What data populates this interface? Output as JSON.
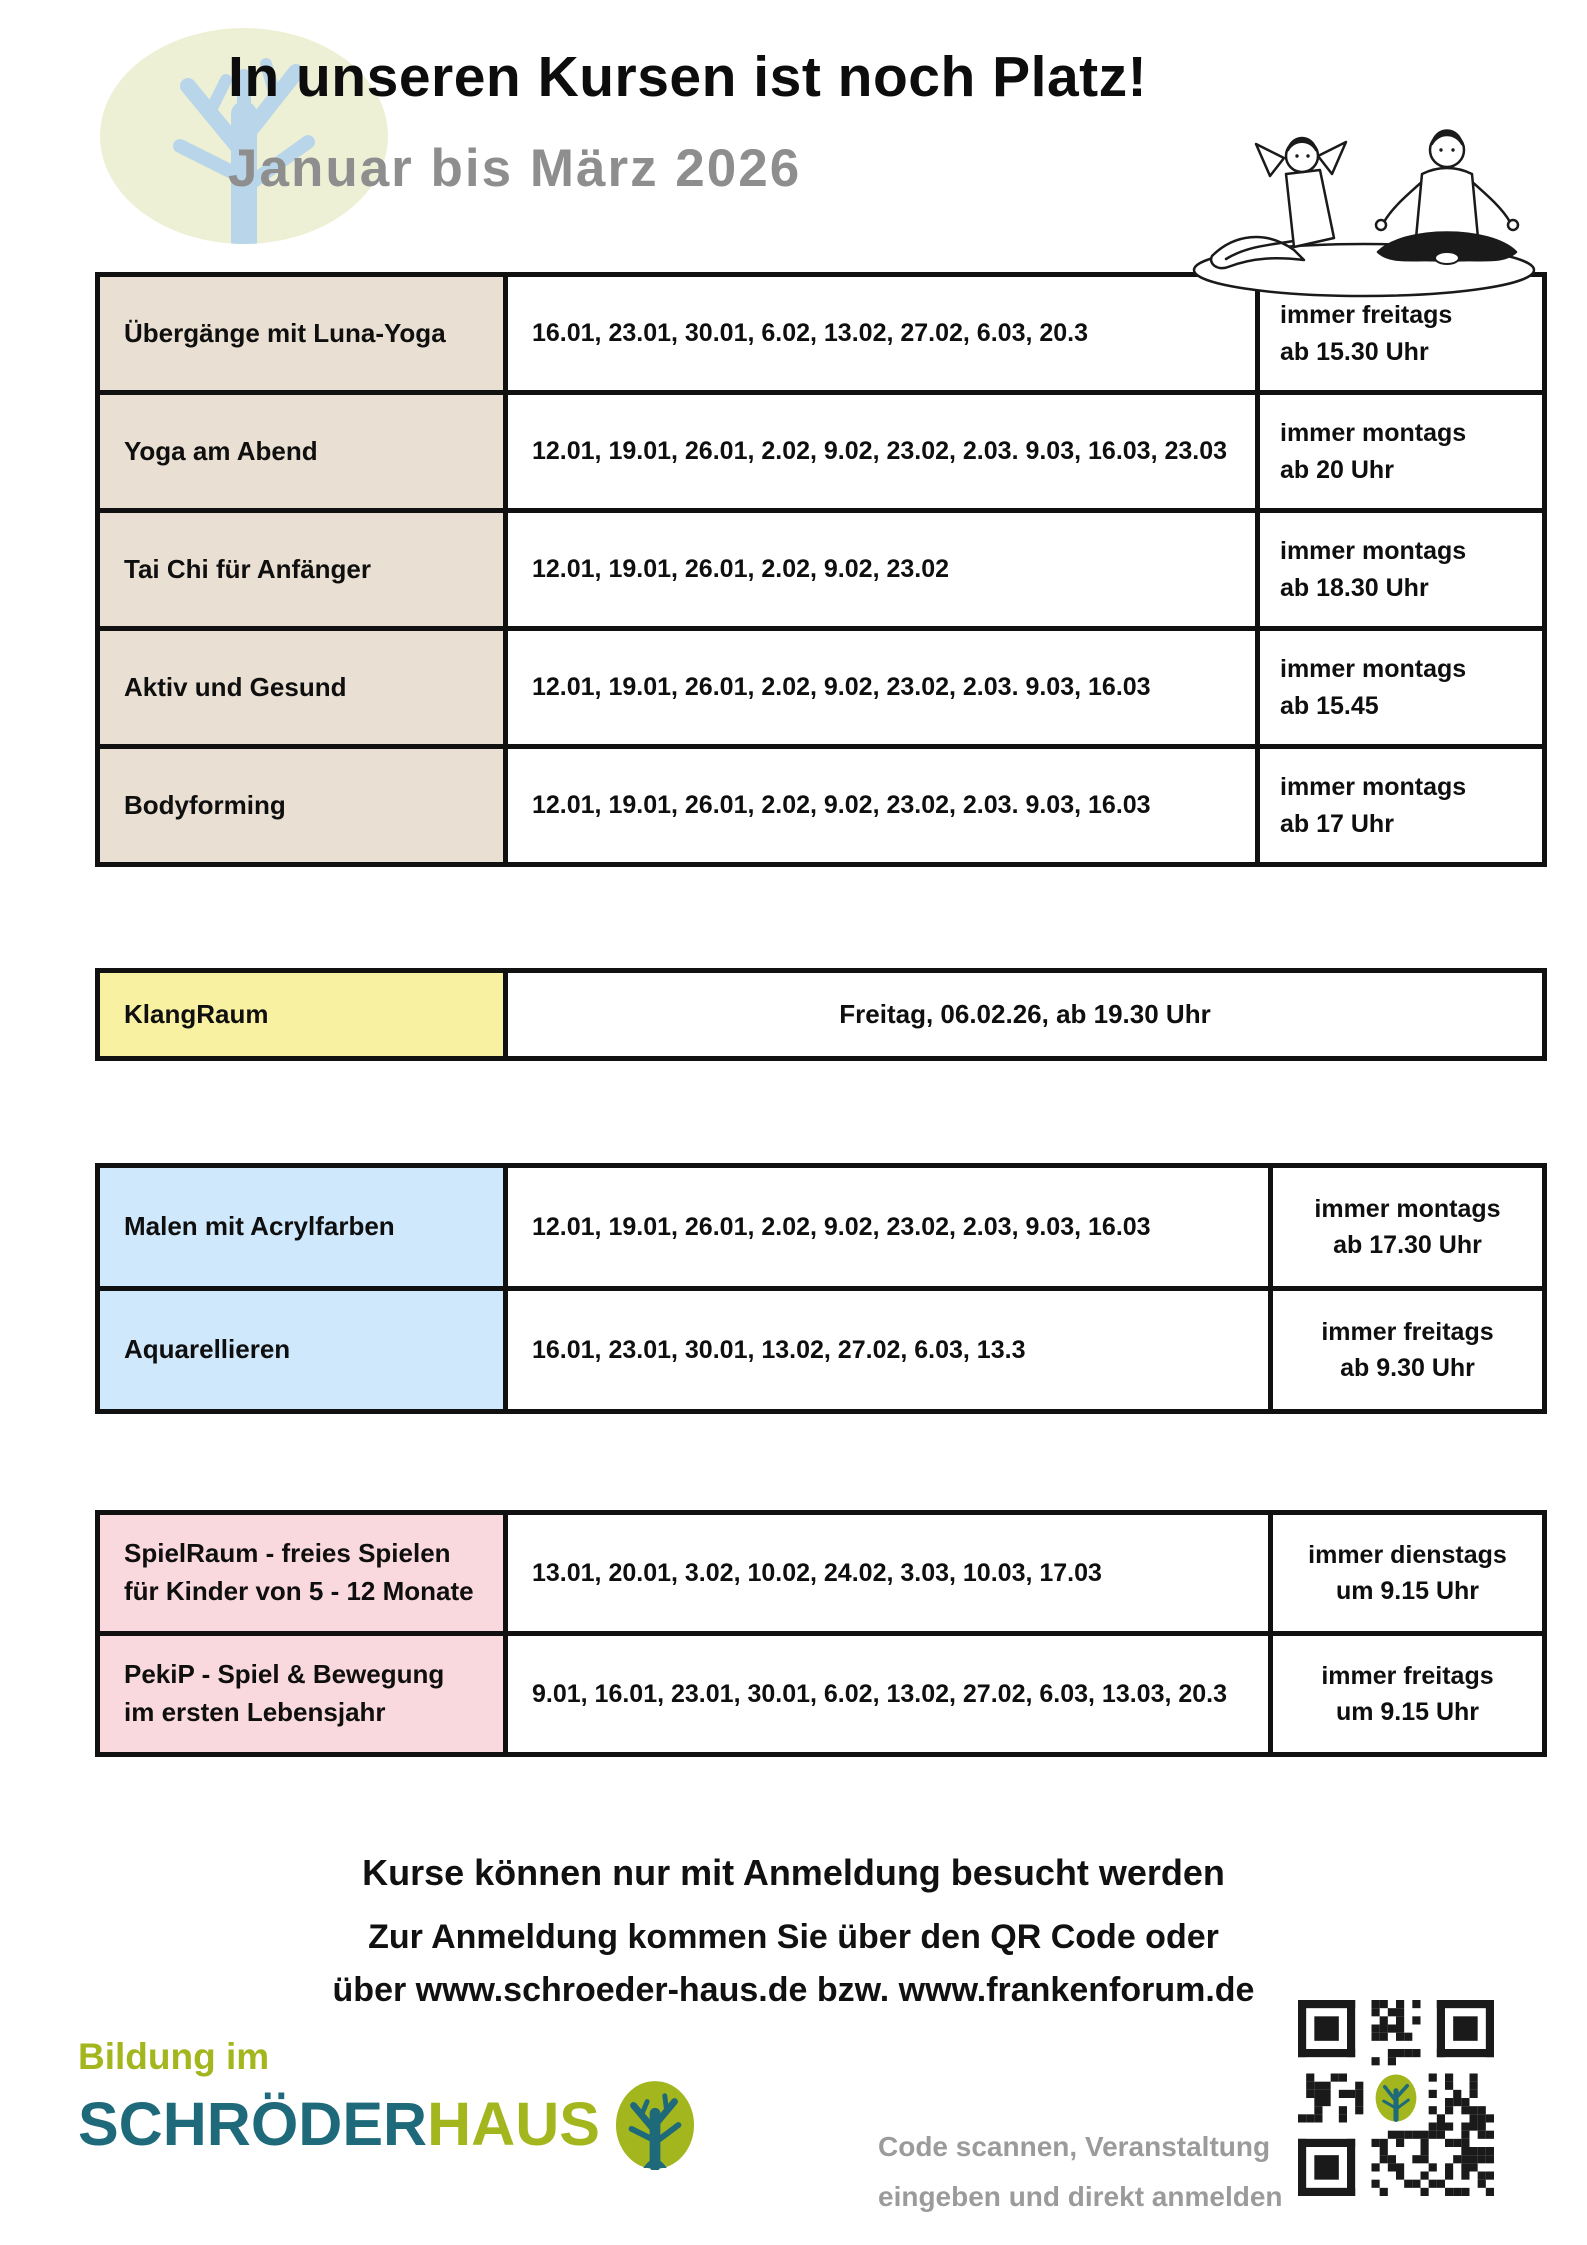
{
  "header": {
    "title": "In unseren Kursen ist noch Platz!",
    "subtitle": "Januar bis März 2026"
  },
  "tables": {
    "wellness": {
      "rows": [
        {
          "label": "Übergänge mit Luna-Yoga",
          "dates": "16.01, 23.01, 30.01, 6.02, 13.02, 27.02, 6.03, 20.3",
          "sched1": "immer freitags",
          "sched2": "ab 15.30 Uhr"
        },
        {
          "label": "Yoga am Abend",
          "dates": "12.01, 19.01, 26.01, 2.02, 9.02, 23.02, 2.03. 9.03, 16.03, 23.03",
          "sched1": "immer montags",
          "sched2": "ab 20 Uhr"
        },
        {
          "label": "Tai Chi für Anfänger",
          "dates": "12.01, 19.01, 26.01, 2.02, 9.02, 23.02",
          "sched1": "immer montags",
          "sched2": "ab 18.30 Uhr"
        },
        {
          "label": "Aktiv und Gesund",
          "dates": "12.01, 19.01, 26.01, 2.02, 9.02, 23.02, 2.03. 9.03, 16.03",
          "sched1": "immer montags",
          "sched2": "ab 15.45"
        },
        {
          "label": "Bodyforming",
          "dates": "12.01, 19.01, 26.01, 2.02, 9.02, 23.02, 2.03. 9.03, 16.03",
          "sched1": "immer montags",
          "sched2": "ab 17 Uhr"
        }
      ]
    },
    "klangraum": {
      "label": "KlangRaum",
      "info": "Freitag, 06.02.26, ab 19.30 Uhr"
    },
    "art": {
      "rows": [
        {
          "label": "Malen mit Acrylfarben",
          "dates": "12.01, 19.01, 26.01, 2.02, 9.02, 23.02, 2.03, 9.03, 16.03",
          "sched1": "immer montags",
          "sched2": "ab 17.30 Uhr"
        },
        {
          "label": "Aquarellieren",
          "dates": "16.01, 23.01, 30.01, 13.02, 27.02, 6.03, 13.3",
          "sched1": "immer freitags",
          "sched2": "ab 9.30 Uhr"
        }
      ]
    },
    "kids": {
      "rows": [
        {
          "label": "SpielRaum - freies Spielen für Kinder von 5 - 12 Monate",
          "dates": "13.01, 20.01, 3.02, 10.02, 24.02, 3.03, 10.03, 17.03",
          "sched1": "immer dienstags",
          "sched2": "um 9.15 Uhr"
        },
        {
          "label": "PekiP - Spiel & Bewegung im ersten Lebensjahr",
          "dates": "9.01, 16.01, 23.01, 30.01, 6.02, 13.02, 27.02, 6.03, 13.03, 20.3",
          "sched1": "immer freitags",
          "sched2": "um 9.15 Uhr"
        }
      ]
    }
  },
  "footer": {
    "line1": "Kurse können nur mit Anmeldung besucht werden",
    "line2": "Zur Anmeldung kommen Sie über den QR Code oder",
    "line3": "über www.schroeder-haus.de bzw. www.frankenforum.de"
  },
  "brand": {
    "tagline": "Bildung im",
    "name_teal": "SCHRÖDER",
    "name_green": "HAUS"
  },
  "qr": {
    "caption_line1": "Code scannen, Veranstaltung",
    "caption_line2": "eingeben und direkt anmelden"
  },
  "colors": {
    "beige": "#e9dfd2",
    "yellow": "#f9f1a2",
    "blue": "#cfe8fb",
    "pink": "#f9d9de",
    "teal": "#1e6a7a",
    "green": "#a4b61e",
    "subtitle_gray": "#8e8e8e",
    "caption_gray": "#9b9b9b"
  }
}
